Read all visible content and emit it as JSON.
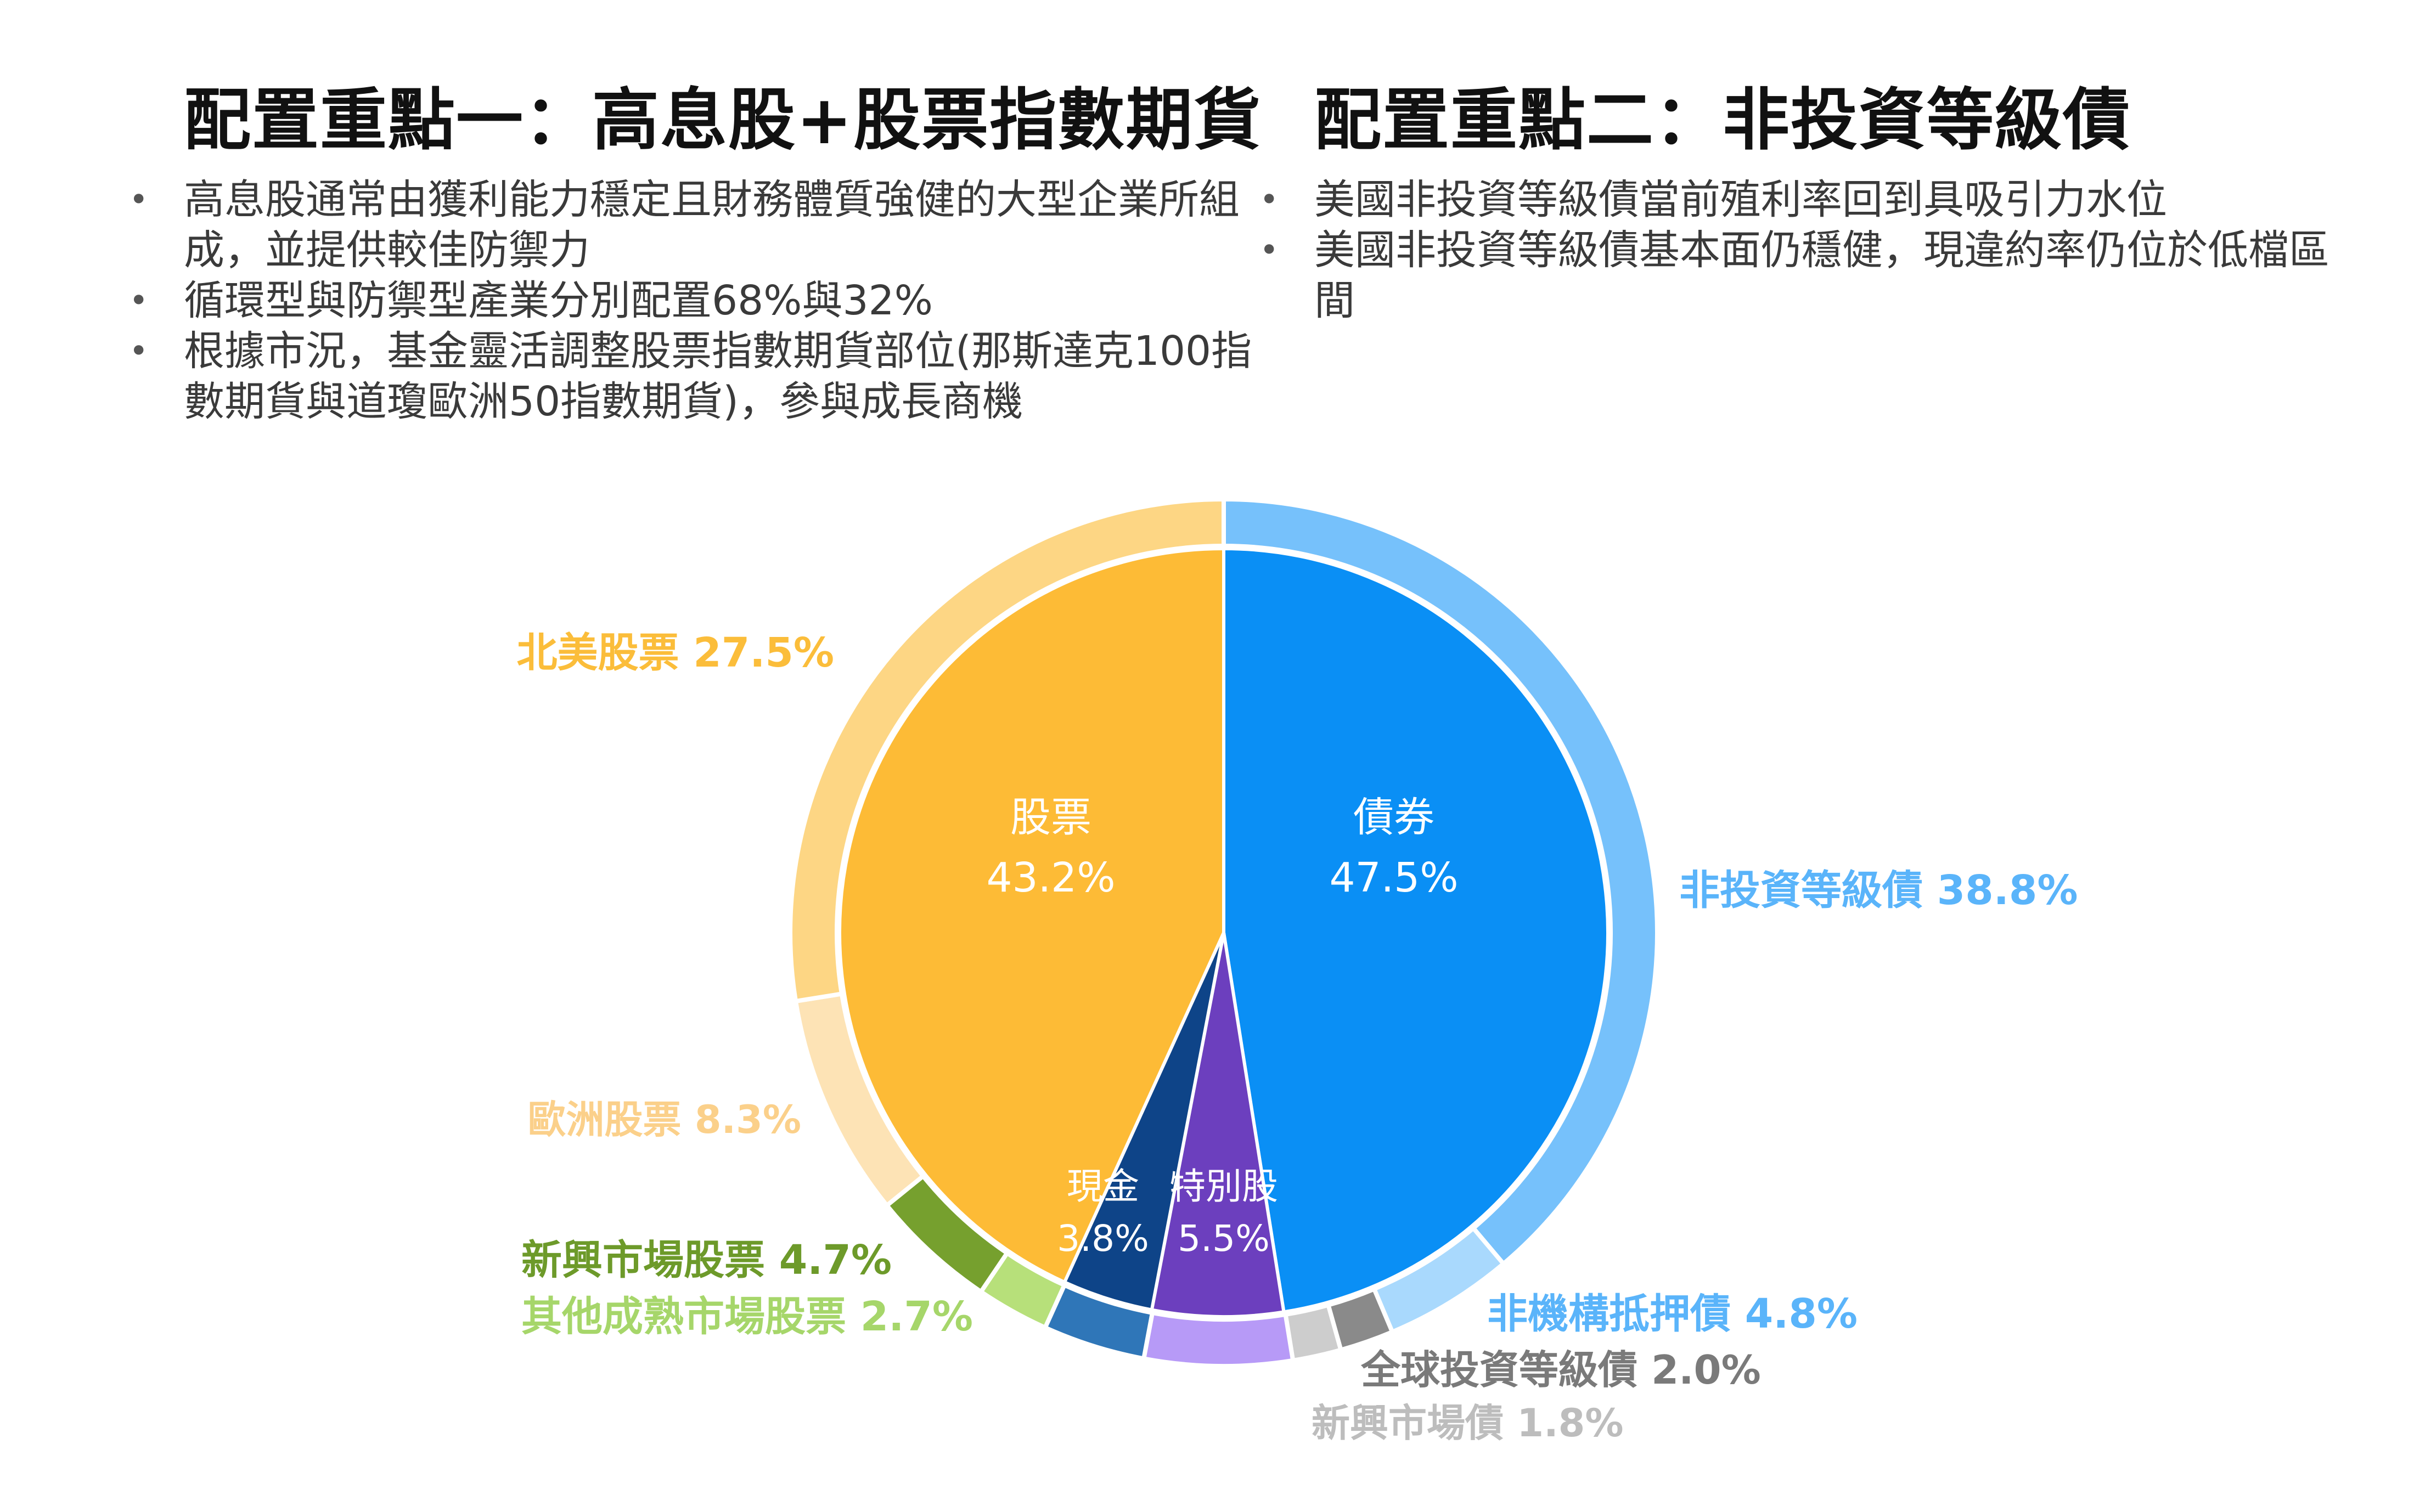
{
  "left_panel": {
    "title": "配置重點一：高息股+股票指數期貨",
    "bullets": [
      "高息股通常由獲利能力穩定且財務體質強健的大型企業所組成，並提供較佳防禦力",
      "循環型與防禦型產業分別配置68%與32%",
      "根據市況，基金靈活調整股票指數期貨部位(那斯達克100指數期貨與道瓊歐洲50指數期貨)，參與成長商機"
    ]
  },
  "right_panel": {
    "title": "配置重點二：非投資等級債",
    "bullets": [
      "美國非投資等級債當前殖利率回到具吸引力水位",
      "美國非投資等級債基本面仍穩健，現違約率仍位於低檔區間"
    ]
  },
  "chart_data": {
    "type": "pie",
    "inner": [
      {
        "name": "債券",
        "label": "47.5%",
        "value": 47.5,
        "color": "#0a8ff5"
      },
      {
        "name": "特別股",
        "label": "5.5%",
        "value": 5.5,
        "color": "#6c3fbe"
      },
      {
        "name": "現金",
        "label": "3.8%",
        "value": 3.8,
        "color": "#0e4488"
      },
      {
        "name": "股票",
        "label": "43.2%",
        "value": 43.2,
        "color": "#fdbb36"
      }
    ],
    "outer": [
      {
        "name": "非投資等級債",
        "label": "38.8%",
        "value": 38.8,
        "color": "#76c1fb",
        "text_color": "#5ab4fa"
      },
      {
        "name": "非機構抵押債",
        "label": "4.8%",
        "value": 4.8,
        "color": "#a9d9fd",
        "text_color": "#5ab4fa"
      },
      {
        "name": "全球投資等級債",
        "label": "2.0%",
        "value": 2.0,
        "color": "#8a8a8a",
        "text_color": "#7a7a7a"
      },
      {
        "name": "新興市場債",
        "label": "1.8%",
        "value": 1.8,
        "color": "#cdcdcd",
        "text_color": "#bdbdbd"
      },
      {
        "name": "特別股",
        "label": "",
        "value": 5.5,
        "color": "#b79af7",
        "text_color": ""
      },
      {
        "name": "現金",
        "label": "",
        "value": 3.8,
        "color": "#2f76b8",
        "text_color": ""
      },
      {
        "name": "其他成熟市場股票",
        "label": "2.7%",
        "value": 2.7,
        "color": "#b7e07a",
        "text_color": "#a6d66a"
      },
      {
        "name": "新興市場股票",
        "label": "4.7%",
        "value": 4.7,
        "color": "#76a02e",
        "text_color": "#6d9a2a"
      },
      {
        "name": "歐洲股票",
        "label": "8.3%",
        "value": 8.3,
        "color": "#fde3b5",
        "text_color": "#fbd08a"
      },
      {
        "name": "北美股票",
        "label": "27.5%",
        "value": 27.5,
        "color": "#fdd684",
        "text_color": "#fbbd3a"
      }
    ]
  }
}
